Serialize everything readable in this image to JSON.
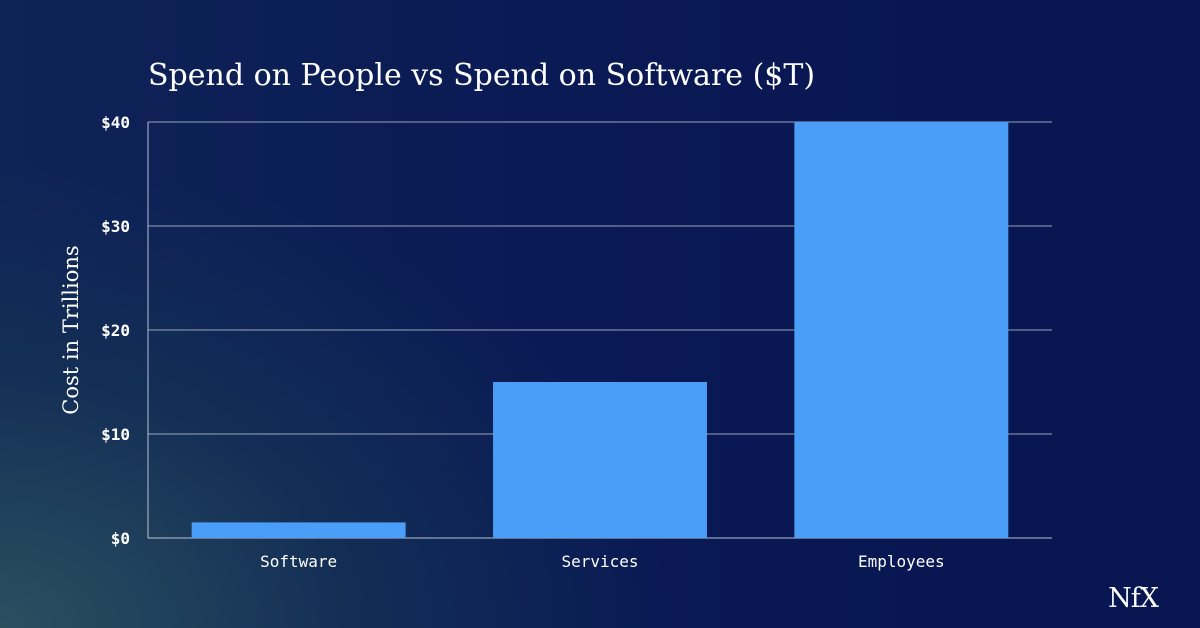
{
  "chart_data": {
    "type": "bar",
    "title": "Spend on People vs Spend on Software ($T)",
    "xlabel": "",
    "ylabel": "Cost in Trillions",
    "categories": [
      "Software",
      "Services",
      "Employees"
    ],
    "values": [
      1.5,
      15,
      40
    ],
    "ylim": [
      0,
      40
    ],
    "yticks": [
      0,
      10,
      20,
      30,
      40
    ],
    "ytick_labels": [
      "$0",
      "$10",
      "$20",
      "$30",
      "$40"
    ],
    "grid": true,
    "legend": "none"
  },
  "colors": {
    "bar": "#4a9ef7",
    "grid": "#c8d0e0",
    "text": "#ffffff",
    "background_left": "#2a5060",
    "background_right": "#071550"
  },
  "brand": {
    "logo_text": "NfX"
  }
}
